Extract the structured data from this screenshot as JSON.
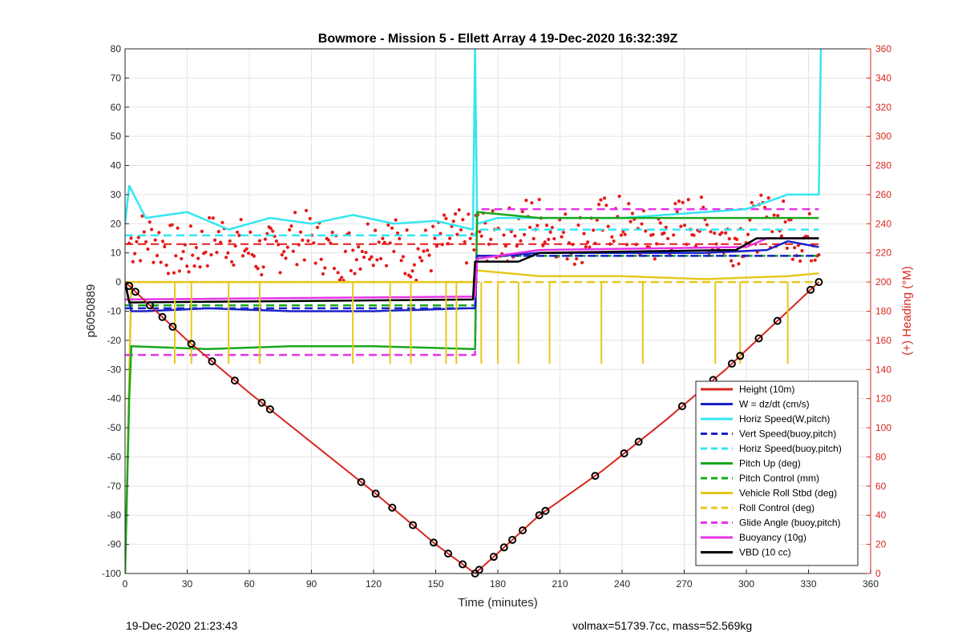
{
  "chart_data": {
    "type": "line",
    "title": "Bowmore - Mission 5 - Ellett Array 4 19-Dec-2020 16:32:39Z",
    "xlabel": "Time (minutes)",
    "ylabel": "p6050889",
    "y2label": "(+) Heading (°M)",
    "xlim": [
      0,
      360
    ],
    "ylim": [
      -100,
      80
    ],
    "y2lim": [
      0,
      360
    ],
    "xticks": [
      0,
      30,
      60,
      90,
      120,
      150,
      180,
      210,
      240,
      270,
      300,
      330,
      360
    ],
    "yticks": [
      -100,
      -90,
      -80,
      -70,
      -60,
      -50,
      -40,
      -30,
      -20,
      -10,
      0,
      10,
      20,
      30,
      40,
      50,
      60,
      70,
      80
    ],
    "y2ticks": [
      0,
      20,
      40,
      60,
      80,
      100,
      120,
      140,
      160,
      180,
      200,
      220,
      240,
      260,
      280,
      300,
      320,
      340,
      360
    ],
    "grid": true,
    "legend_position": "bottom-right",
    "colors": {
      "height": "#d7261e",
      "w": "#1a22c8",
      "horiz": "#33e6f0",
      "vert_buoy": "#1a22c8",
      "horiz_buoy": "#33e6f0",
      "pitch": "#19a81e",
      "pitch_ctrl": "#19a81e",
      "roll": "#e6c81c",
      "roll_ctrl": "#e6c81c",
      "glide": "#e633e6",
      "buoyancy": "#e633e6",
      "vbd": "#000000",
      "heading": "#e61a1a",
      "right_axis": "#d7261e"
    },
    "series": [
      {
        "name": "Height (10m)",
        "key": "height",
        "style": "solid",
        "x": [
          0,
          30,
          60,
          90,
          120,
          150,
          169,
          180,
          200,
          230,
          260,
          290,
          320,
          335
        ],
        "y": [
          0,
          -20,
          -38,
          -55,
          -72,
          -90,
          -100,
          -93,
          -80,
          -65,
          -48,
          -30,
          -10,
          0
        ]
      },
      {
        "name": "W = dz/dt (cm/s)",
        "key": "w",
        "style": "solid",
        "x": [
          0,
          3,
          10,
          40,
          80,
          120,
          165,
          169,
          170,
          180,
          200,
          240,
          280,
          310,
          320,
          335
        ],
        "y": [
          0,
          -10,
          -10,
          -9,
          -10,
          -10,
          -9,
          -9,
          9,
          9,
          10,
          10,
          10,
          11,
          14,
          12
        ]
      },
      {
        "name": "Horiz Speed(W,pitch)",
        "key": "horiz",
        "style": "solid",
        "x": [
          0,
          2,
          10,
          30,
          50,
          70,
          90,
          110,
          130,
          150,
          168,
          169,
          170,
          180,
          200,
          240,
          280,
          300,
          320,
          335,
          336
        ],
        "y": [
          20,
          33,
          22,
          24,
          18,
          22,
          20,
          23,
          20,
          21,
          18,
          80,
          20,
          22,
          22,
          22,
          24,
          25,
          30,
          30,
          80
        ]
      },
      {
        "name": "Vert Speed(buoy,pitch)",
        "key": "vert_buoy",
        "style": "dashed",
        "x": [
          0,
          169,
          170,
          335
        ],
        "y": [
          -9,
          -9,
          9,
          9
        ]
      },
      {
        "name": "Horiz Speed(buoy,pitch)",
        "key": "horiz_buoy",
        "style": "dashed",
        "x": [
          0,
          169,
          170,
          335
        ],
        "y": [
          16,
          16,
          18,
          18
        ]
      },
      {
        "name": "Pitch Up (deg)",
        "key": "pitch",
        "style": "solid",
        "x": [
          0,
          2,
          3,
          40,
          80,
          120,
          168,
          169,
          170,
          200,
          240,
          280,
          320,
          335
        ],
        "y": [
          -100,
          -40,
          -22,
          -23,
          -22,
          -22,
          -23,
          -23,
          24,
          22,
          22,
          22,
          22,
          22
        ]
      },
      {
        "name": "Pitch Control (mm)",
        "key": "pitch_ctrl",
        "style": "dashed",
        "x": [
          0,
          169,
          170,
          335
        ],
        "y": [
          -8,
          -8,
          9,
          9
        ]
      },
      {
        "name": "Vehicle Roll Stbd (deg)",
        "key": "roll",
        "style": "solid",
        "x": [
          0,
          3,
          40,
          80,
          120,
          168,
          169,
          170,
          200,
          240,
          280,
          320,
          335
        ],
        "y": [
          -100,
          0,
          0,
          0,
          0,
          0,
          2,
          4,
          2,
          2,
          1,
          2,
          3
        ]
      },
      {
        "name": "Roll Control (deg)",
        "key": "roll_ctrl",
        "style": "dashed",
        "x": [
          0,
          169,
          170,
          335
        ],
        "y": [
          0,
          0,
          0,
          0
        ]
      },
      {
        "name": "Glide Angle (buoy,pitch)",
        "key": "glide",
        "style": "dashed",
        "x": [
          0,
          169,
          170,
          335
        ],
        "y": [
          -25,
          -25,
          25,
          25
        ]
      },
      {
        "name": "Buoyancy (10g)",
        "key": "buoyancy",
        "style": "solid",
        "x": [
          0,
          169,
          170,
          200,
          300,
          310,
          335
        ],
        "y": [
          -6,
          -5,
          8,
          11,
          12,
          15,
          15
        ]
      },
      {
        "name": "VBD (10 cc)",
        "key": "vbd",
        "style": "solid",
        "x": [
          0,
          2,
          168,
          169,
          172,
          190,
          200,
          295,
          305,
          335
        ],
        "y": [
          0,
          -7,
          -6,
          7,
          7,
          7,
          10,
          11,
          15,
          15
        ]
      }
    ],
    "footer_left": "19-Dec-2020 21:23:43",
    "footer_right": "volmax=51739.7cc, mass=52.569kg"
  }
}
